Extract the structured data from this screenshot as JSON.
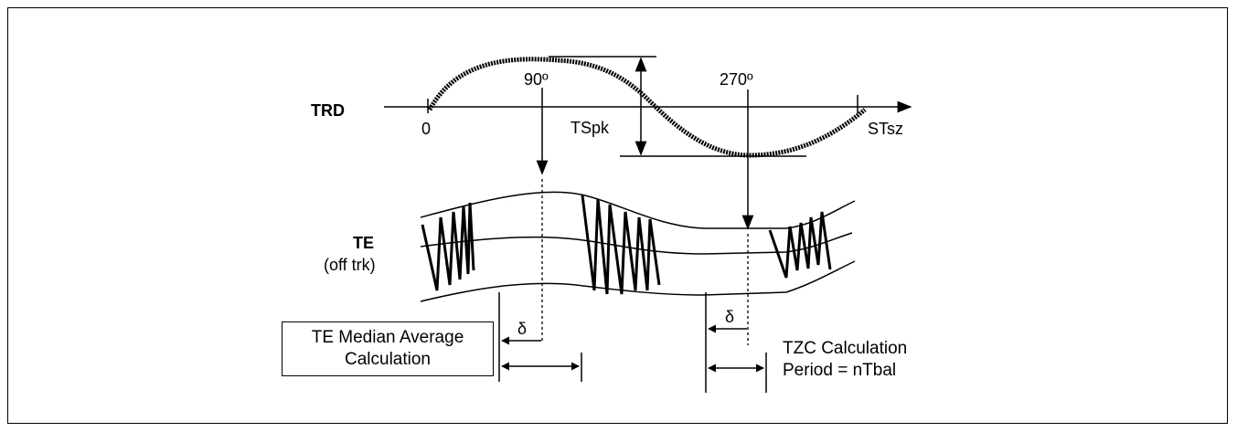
{
  "trd": {
    "label": "TRD",
    "origin_label": "0",
    "angle_90_label": "90º",
    "angle_270_label": "270º",
    "peak_label": "TSpk",
    "end_label": "STsz"
  },
  "te": {
    "label": "TE",
    "sublabel": "(off trk)"
  },
  "delta_symbol": "δ",
  "median_box": {
    "line1": "TE Median Average",
    "line2": "Calculation"
  },
  "tzc": {
    "line1": "TZC Calculation",
    "line2": "Period = nTbal"
  }
}
